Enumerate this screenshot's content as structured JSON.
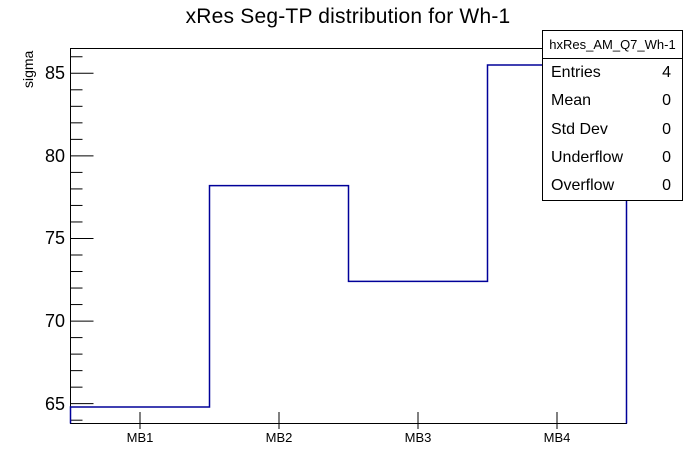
{
  "title": "xRes Seg-TP distribution for Wh-1",
  "stats_box": {
    "header": "hxRes_AM_Q7_Wh-1",
    "rows": [
      {
        "label": "Entries",
        "value": "4"
      },
      {
        "label": "Mean",
        "value": "0"
      },
      {
        "label": "Std Dev",
        "value": "0"
      },
      {
        "label": "Underflow",
        "value": "0"
      },
      {
        "label": "Overflow",
        "value": "0"
      }
    ]
  },
  "chart_data": {
    "type": "bar",
    "style": "step-histogram-outline",
    "title": "xRes Seg-TP distribution for Wh-1",
    "xlabel": "",
    "ylabel": "sigma",
    "categories": [
      "MB1",
      "MB2",
      "MB3",
      "MB4"
    ],
    "values": [
      64.8,
      78.2,
      72.4,
      85.5
    ],
    "ylim": [
      63.8,
      86.5
    ],
    "y_major_ticks": [
      65,
      70,
      75,
      80,
      85
    ],
    "y_minor_tick_step": 1,
    "grid": false,
    "legend_position": "top-right",
    "colors": {
      "line": "#000099",
      "frame": "#000000",
      "background": "#ffffff",
      "text": "#000000"
    }
  }
}
